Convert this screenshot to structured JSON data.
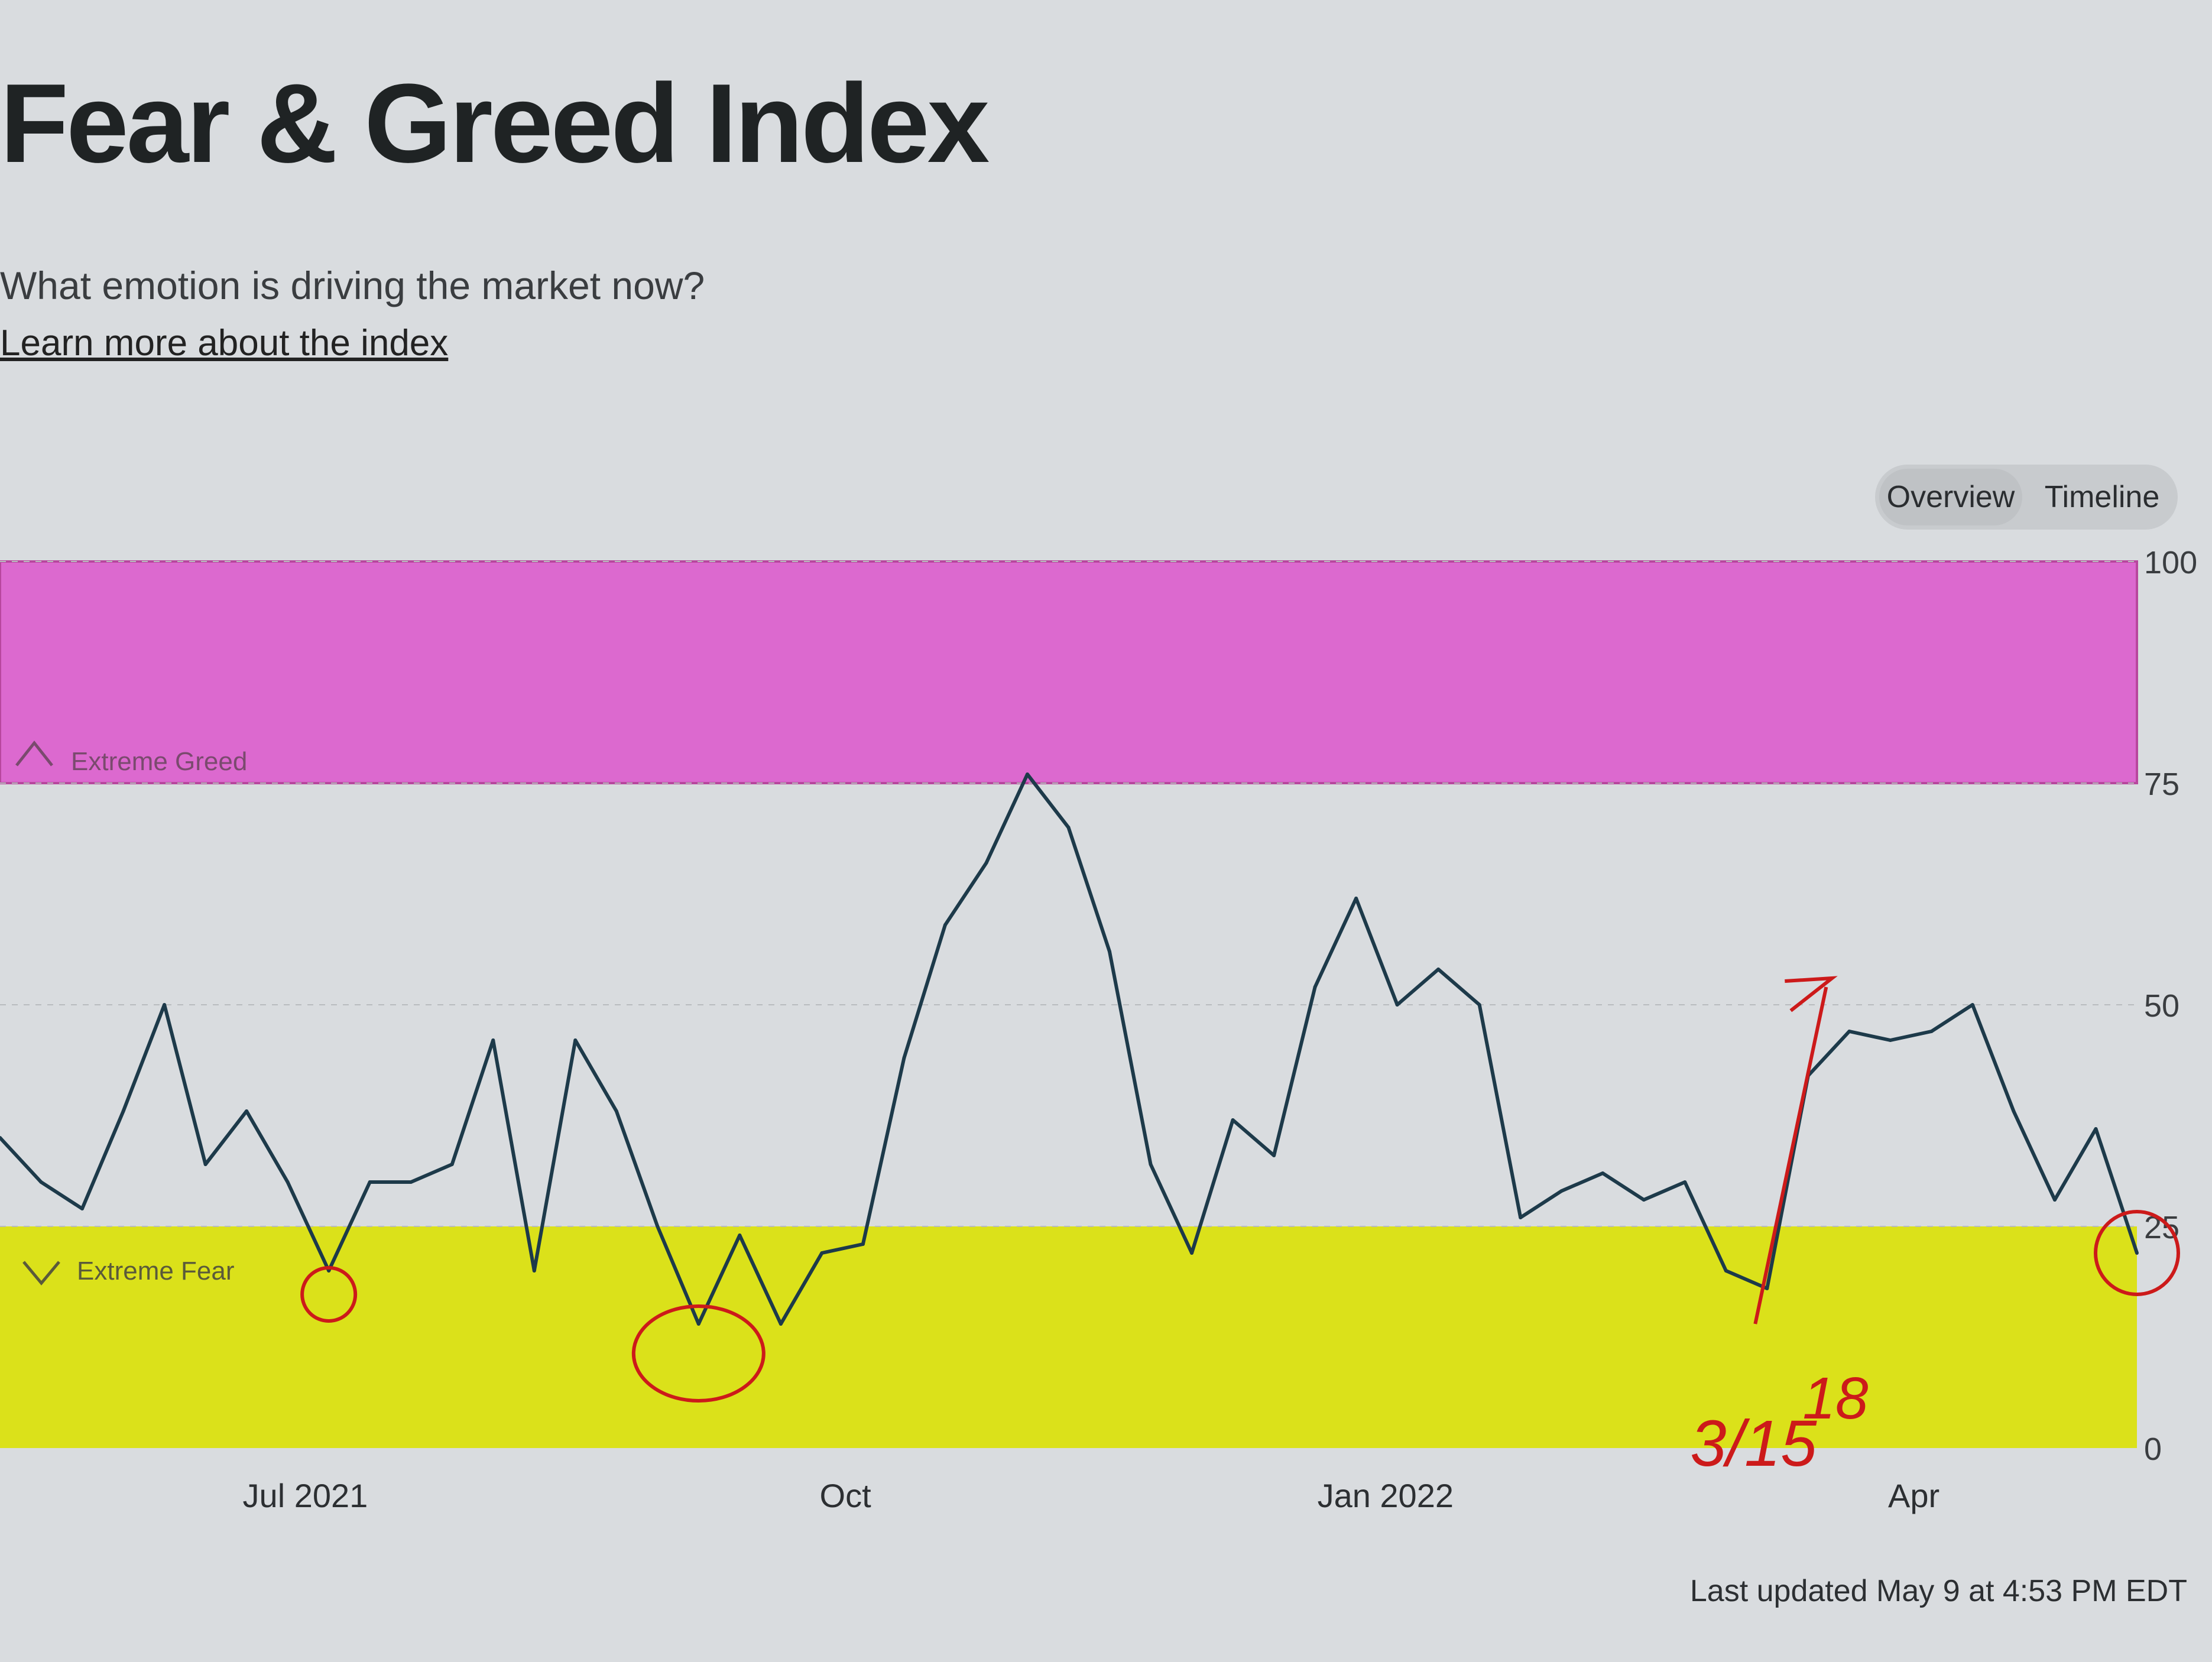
{
  "header": {
    "title": "Fear & Greed Index",
    "subtitle": "What emotion is driving the market now?",
    "learn_more": "Learn more about the index"
  },
  "view_toggle": {
    "overview_label": "Overview",
    "timeline_label": "Timeline",
    "active": "Overview"
  },
  "footer": {
    "last_updated": "Last updated May 9 at 4:53 PM EDT"
  },
  "colors": {
    "extreme_greed_band": "#dc69cf",
    "extreme_fear_band": "#dbe11a",
    "line": "#1d3a4a",
    "annotation_red": "#cc1a1a"
  },
  "chart_data": {
    "type": "line",
    "title": "",
    "xlabel": "",
    "ylabel": "",
    "ylim": [
      0,
      100
    ],
    "y_ticks": [
      "100",
      "75",
      "50",
      "25",
      "0"
    ],
    "x_ticks": [
      "Jul 2021",
      "Oct",
      "Jan 2022",
      "Apr"
    ],
    "x": [
      "2021-05-10",
      "2021-05-17",
      "2021-05-24",
      "2021-05-31",
      "2021-06-07",
      "2021-06-14",
      "2021-06-21",
      "2021-06-28",
      "2021-07-05",
      "2021-07-12",
      "2021-07-19",
      "2021-07-26",
      "2021-08-02",
      "2021-08-09",
      "2021-08-16",
      "2021-08-23",
      "2021-08-30",
      "2021-09-06",
      "2021-09-13",
      "2021-09-20",
      "2021-09-27",
      "2021-10-04",
      "2021-10-11",
      "2021-10-18",
      "2021-10-25",
      "2021-11-01",
      "2021-11-08",
      "2021-11-15",
      "2021-11-22",
      "2021-11-29",
      "2021-12-06",
      "2021-12-13",
      "2021-12-20",
      "2021-12-27",
      "2022-01-03",
      "2022-01-10",
      "2022-01-17",
      "2022-01-24",
      "2022-01-31",
      "2022-02-07",
      "2022-02-14",
      "2022-02-21",
      "2022-02-28",
      "2022-03-07",
      "2022-03-14",
      "2022-03-21",
      "2022-03-28",
      "2022-04-04",
      "2022-04-11",
      "2022-04-18",
      "2022-04-25",
      "2022-05-02",
      "2022-05-09"
    ],
    "series": [
      {
        "values": [
          35,
          30,
          27,
          38,
          50,
          32,
          38,
          30,
          20,
          30,
          30,
          32,
          46,
          20,
          46,
          38,
          25,
          14,
          24,
          14,
          22,
          23,
          44,
          59,
          66,
          76,
          70,
          56,
          32,
          22,
          37,
          33,
          52,
          62,
          50,
          54,
          50,
          26,
          29,
          31,
          28,
          30,
          20,
          18,
          42,
          47,
          46,
          47,
          50,
          38,
          28,
          36,
          22
        ]
      }
    ],
    "bands": [
      {
        "label": "Extreme Greed",
        "from": 75,
        "to": 100
      },
      {
        "label": "Extreme Fear",
        "from": 0,
        "to": 25
      }
    ],
    "annotations": [
      "3/15",
      "18"
    ]
  }
}
